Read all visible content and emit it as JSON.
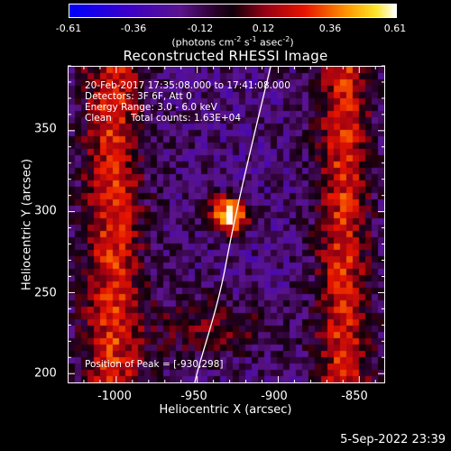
{
  "colorbar": {
    "tick_labels": [
      "-0.61",
      "-0.36",
      "-0.12",
      "0.12",
      "0.36",
      "0.61"
    ],
    "units_text": "(photons cm",
    "units_sup1": "-2",
    "units_mid": " s",
    "units_sup2": "-1",
    "units_end": " asec",
    "units_sup3": "-2",
    "units_close": ")"
  },
  "title": "Reconstructed RHESSI Image",
  "info": {
    "time_range": "20-Feb-2017 17:35:08.000 to 17:41:08.000",
    "detectors": "Detectors: 3F 6F, Att 0",
    "energy": "Energy Range: 3.0 - 6.0 keV",
    "method": "Clean",
    "counts": "Total counts: 1.63E+04",
    "peak": "Position of Peak = [-930,298]"
  },
  "axes": {
    "xlabel": "Heliocentric X (arcsec)",
    "ylabel": "Heliocentric Y (arcsec)",
    "xticks": [
      "-1000",
      "-950",
      "-900",
      "-850"
    ],
    "yticks": [
      "350",
      "300",
      "250",
      "200"
    ],
    "x_tick_values": [
      -1000,
      -950,
      -900,
      -850
    ],
    "y_tick_values": [
      350,
      300,
      250,
      200
    ],
    "xlim": [
      -1030,
      -834
    ],
    "ylim": [
      194,
      390
    ]
  },
  "source": {
    "peak_x": -930,
    "peak_y": 298
  },
  "timestamp": "5-Sep-2022 23:39",
  "colors": {
    "background": "#000000",
    "foreground": "#ffffff"
  }
}
